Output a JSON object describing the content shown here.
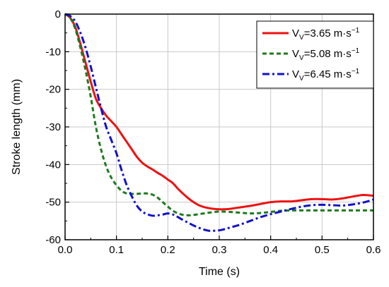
{
  "chart_data": {
    "type": "line",
    "xlabel": "Time (s)",
    "ylabel": "Stroke length (mm)",
    "xlim": [
      0,
      0.6
    ],
    "ylim": [
      -60,
      0
    ],
    "xticks": [
      "0.0",
      "0.1",
      "0.2",
      "0.3",
      "0.4",
      "0.5",
      "0.6"
    ],
    "yticks": [
      "0",
      "-10",
      "-20",
      "-30",
      "-40",
      "-50",
      "-60"
    ],
    "grid": true,
    "legend_position": "top-right",
    "series": [
      {
        "name": "V_V=3.65 m·s^-1",
        "label_main": "V",
        "label_sub": "V",
        "label_value": "=3.65 m·s",
        "label_sup": "−1",
        "color": "#ee1111",
        "dash": "solid",
        "x": [
          0,
          0.01,
          0.02,
          0.03,
          0.04,
          0.05,
          0.06,
          0.07,
          0.08,
          0.09,
          0.1,
          0.11,
          0.12,
          0.13,
          0.14,
          0.15,
          0.16,
          0.17,
          0.18,
          0.19,
          0.2,
          0.21,
          0.22,
          0.23,
          0.24,
          0.25,
          0.26,
          0.27,
          0.28,
          0.29,
          0.3,
          0.31,
          0.32,
          0.33,
          0.34,
          0.35,
          0.36,
          0.38,
          0.4,
          0.42,
          0.44,
          0.46,
          0.48,
          0.5,
          0.52,
          0.54,
          0.56,
          0.58,
          0.6
        ],
        "y": [
          0,
          -1,
          -3.5,
          -8,
          -13,
          -18,
          -22.5,
          -25,
          -27,
          -28.5,
          -30,
          -32,
          -34,
          -36,
          -38,
          -39.5,
          -40.5,
          -41.3,
          -42.2,
          -43,
          -44,
          -45,
          -46.5,
          -47.8,
          -49,
          -50,
          -50.8,
          -51.3,
          -51.6,
          -51.8,
          -51.9,
          -51.9,
          -51.8,
          -51.6,
          -51.4,
          -51.2,
          -51.0,
          -50.5,
          -50.0,
          -49.8,
          -49.8,
          -49.5,
          -49.2,
          -49.2,
          -49.3,
          -49.0,
          -48.5,
          -48.1,
          -48.3
        ]
      },
      {
        "name": "V_V=5.08 m·s^-1",
        "label_main": "V",
        "label_sub": "V",
        "label_value": "=5.08 m·s",
        "label_sup": "−1",
        "color": "#1e7a1e",
        "dash": "dashed",
        "x": [
          0,
          0.01,
          0.02,
          0.03,
          0.04,
          0.05,
          0.06,
          0.07,
          0.08,
          0.09,
          0.1,
          0.11,
          0.12,
          0.13,
          0.14,
          0.15,
          0.16,
          0.17,
          0.18,
          0.19,
          0.2,
          0.21,
          0.22,
          0.23,
          0.24,
          0.25,
          0.26,
          0.27,
          0.28,
          0.3,
          0.32,
          0.34,
          0.36,
          0.38,
          0.4,
          0.42,
          0.44,
          0.46,
          0.48,
          0.5,
          0.52,
          0.54,
          0.56,
          0.58,
          0.6
        ],
        "y": [
          0,
          -1,
          -4,
          -9,
          -15,
          -22,
          -30,
          -36,
          -40.5,
          -43.5,
          -45.5,
          -47,
          -47.7,
          -47.8,
          -47.8,
          -47.7,
          -47.7,
          -48,
          -48.8,
          -50,
          -51.2,
          -52.3,
          -53,
          -53.4,
          -53.5,
          -53.4,
          -53.2,
          -53.0,
          -52.8,
          -52.5,
          -52.6,
          -52.8,
          -53.0,
          -52.9,
          -52.6,
          -52.3,
          -52.2,
          -52.2,
          -52.2,
          -52.2,
          -52.2,
          -52.2,
          -52.2,
          -52.2,
          -52.2
        ]
      },
      {
        "name": "V_V=6.45 m·s^-1",
        "label_main": "V",
        "label_sub": "V",
        "label_value": "=6.45 m·s",
        "label_sup": "−1",
        "color": "#1111cc",
        "dash": "dashdot",
        "x": [
          0,
          0.01,
          0.02,
          0.03,
          0.04,
          0.05,
          0.06,
          0.07,
          0.08,
          0.09,
          0.1,
          0.11,
          0.12,
          0.13,
          0.14,
          0.15,
          0.16,
          0.17,
          0.18,
          0.19,
          0.2,
          0.21,
          0.22,
          0.23,
          0.24,
          0.25,
          0.26,
          0.27,
          0.28,
          0.29,
          0.3,
          0.31,
          0.32,
          0.34,
          0.36,
          0.38,
          0.4,
          0.42,
          0.44,
          0.46,
          0.48,
          0.5,
          0.52,
          0.54,
          0.56,
          0.58,
          0.6
        ],
        "y": [
          0,
          -0.5,
          -2,
          -5,
          -9,
          -14,
          -19.5,
          -25,
          -30,
          -33.5,
          -37,
          -41.5,
          -45.5,
          -48.5,
          -51,
          -52.5,
          -53.2,
          -53.6,
          -53.5,
          -53.3,
          -53.0,
          -53.3,
          -54,
          -54.8,
          -55.5,
          -56.2,
          -56.8,
          -57.3,
          -57.6,
          -57.6,
          -57.5,
          -57.2,
          -56.8,
          -56.0,
          -55.0,
          -54.0,
          -53.2,
          -52.5,
          -51.8,
          -51.2,
          -50.8,
          -50.7,
          -50.8,
          -50.9,
          -50.6,
          -50.1,
          -49.3
        ]
      }
    ]
  }
}
